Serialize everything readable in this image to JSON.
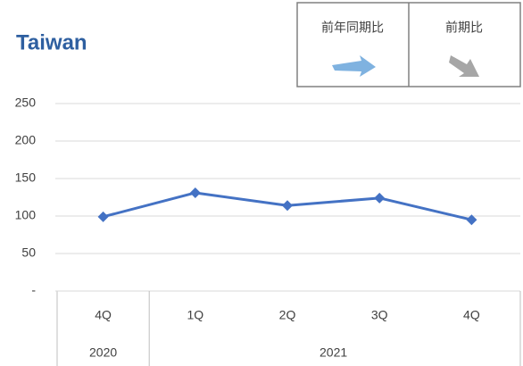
{
  "chart_data": {
    "type": "line",
    "title": "Taiwan",
    "indicators": [
      "前年同期比",
      "前期比"
    ],
    "categories": [
      "4Q",
      "1Q",
      "2Q",
      "3Q",
      "4Q"
    ],
    "category_groups": [
      {
        "label": "2020",
        "span": 1
      },
      {
        "label": "2021",
        "span": 4
      }
    ],
    "series": [
      {
        "color": "#4472c4",
        "values": [
          99,
          131,
          114,
          124,
          95
        ]
      }
    ],
    "ylim": [
      0,
      250
    ],
    "yticks": [
      {
        "value": 0,
        "label": "-"
      },
      50,
      100,
      150,
      200,
      250
    ],
    "grid": true
  }
}
